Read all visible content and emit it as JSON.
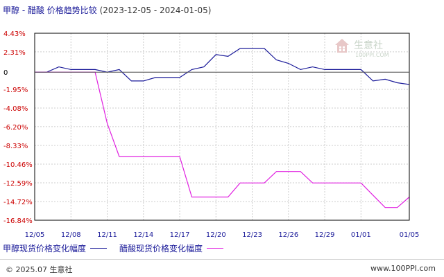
{
  "header": {
    "title": "甲醇 - 醋酸 价格趋势比较",
    "date_range": "(2023-12-05 - 2024-01-05)"
  },
  "watermark": {
    "name": "生意社",
    "url": "100PPI.COM"
  },
  "footer": {
    "copyright": "© 2025.07 生意社",
    "site": "www.100PPI.com"
  },
  "colors": {
    "series1": "#1a1a99",
    "series2": "#e020e0",
    "grid": "#cccccc",
    "axis": "#000000"
  },
  "chart_data": {
    "type": "line",
    "title": "甲醇 - 醋酸 价格趋势比较",
    "xlabel": "",
    "ylabel": "",
    "x_ticks": [
      "12/05",
      "12/08",
      "12/11",
      "12/14",
      "12/17",
      "12/20",
      "12/23",
      "12/26",
      "12/29",
      "01/01",
      "01/05"
    ],
    "y_ticks": [
      "4.43%",
      "2.31%",
      "0",
      "-1.95%",
      "-4.08%",
      "-6.20%",
      "-8.33%",
      "-10.46%",
      "-12.59%",
      "-14.72%",
      "-16.84%"
    ],
    "y_tick_values": [
      4.43,
      2.31,
      0,
      -1.95,
      -4.08,
      -6.2,
      -8.33,
      -10.46,
      -12.59,
      -14.72,
      -16.84
    ],
    "ylim": [
      -16.84,
      4.43
    ],
    "grid": true,
    "legend_position": "bottom-left",
    "series": [
      {
        "name": "甲醇现货价格变化幅度",
        "color": "#1a1a99",
        "points": [
          [
            "2023-12-05",
            0
          ],
          [
            "2023-12-06",
            0
          ],
          [
            "2023-12-07",
            0.6
          ],
          [
            "2023-12-08",
            0.3
          ],
          [
            "2023-12-09",
            0.3
          ],
          [
            "2023-12-10",
            0.3
          ],
          [
            "2023-12-11",
            0
          ],
          [
            "2023-12-12",
            0.3
          ],
          [
            "2023-12-13",
            -1.0
          ],
          [
            "2023-12-14",
            -1.0
          ],
          [
            "2023-12-15",
            -0.6
          ],
          [
            "2023-12-16",
            -0.6
          ],
          [
            "2023-12-17",
            -0.6
          ],
          [
            "2023-12-18",
            0.3
          ],
          [
            "2023-12-19",
            0.6
          ],
          [
            "2023-12-20",
            2.0
          ],
          [
            "2023-12-21",
            1.8
          ],
          [
            "2023-12-22",
            2.7
          ],
          [
            "2023-12-23",
            2.7
          ],
          [
            "2023-12-24",
            2.7
          ],
          [
            "2023-12-25",
            1.4
          ],
          [
            "2023-12-26",
            1.0
          ],
          [
            "2023-12-27",
            0.3
          ],
          [
            "2023-12-28",
            0.6
          ],
          [
            "2023-12-29",
            0.3
          ],
          [
            "2023-12-30",
            0.3
          ],
          [
            "2023-12-31",
            0.3
          ],
          [
            "2024-01-01",
            0.3
          ],
          [
            "2024-01-02",
            -1.0
          ],
          [
            "2024-01-03",
            -0.8
          ],
          [
            "2024-01-04",
            -1.2
          ],
          [
            "2024-01-05",
            -1.4
          ]
        ]
      },
      {
        "name": "醋酸现货价格变化幅度",
        "color": "#e020e0",
        "points": [
          [
            "2023-12-05",
            0
          ],
          [
            "2023-12-06",
            0
          ],
          [
            "2023-12-07",
            0
          ],
          [
            "2023-12-08",
            0
          ],
          [
            "2023-12-09",
            0
          ],
          [
            "2023-12-10",
            0
          ],
          [
            "2023-12-11",
            -5.8
          ],
          [
            "2023-12-12",
            -9.6
          ],
          [
            "2023-12-13",
            -9.6
          ],
          [
            "2023-12-14",
            -9.6
          ],
          [
            "2023-12-15",
            -9.6
          ],
          [
            "2023-12-16",
            -9.6
          ],
          [
            "2023-12-17",
            -9.6
          ],
          [
            "2023-12-18",
            -14.2
          ],
          [
            "2023-12-19",
            -14.2
          ],
          [
            "2023-12-20",
            -14.2
          ],
          [
            "2023-12-21",
            -14.2
          ],
          [
            "2023-12-22",
            -12.6
          ],
          [
            "2023-12-23",
            -12.6
          ],
          [
            "2023-12-24",
            -12.6
          ],
          [
            "2023-12-25",
            -11.3
          ],
          [
            "2023-12-26",
            -11.3
          ],
          [
            "2023-12-27",
            -11.3
          ],
          [
            "2023-12-28",
            -12.6
          ],
          [
            "2023-12-29",
            -12.6
          ],
          [
            "2023-12-30",
            -12.6
          ],
          [
            "2023-12-31",
            -12.6
          ],
          [
            "2024-01-01",
            -12.6
          ],
          [
            "2024-01-02",
            -14.0
          ],
          [
            "2024-01-03",
            -15.4
          ],
          [
            "2024-01-04",
            -15.4
          ],
          [
            "2024-01-05",
            -14.2
          ]
        ]
      }
    ]
  }
}
